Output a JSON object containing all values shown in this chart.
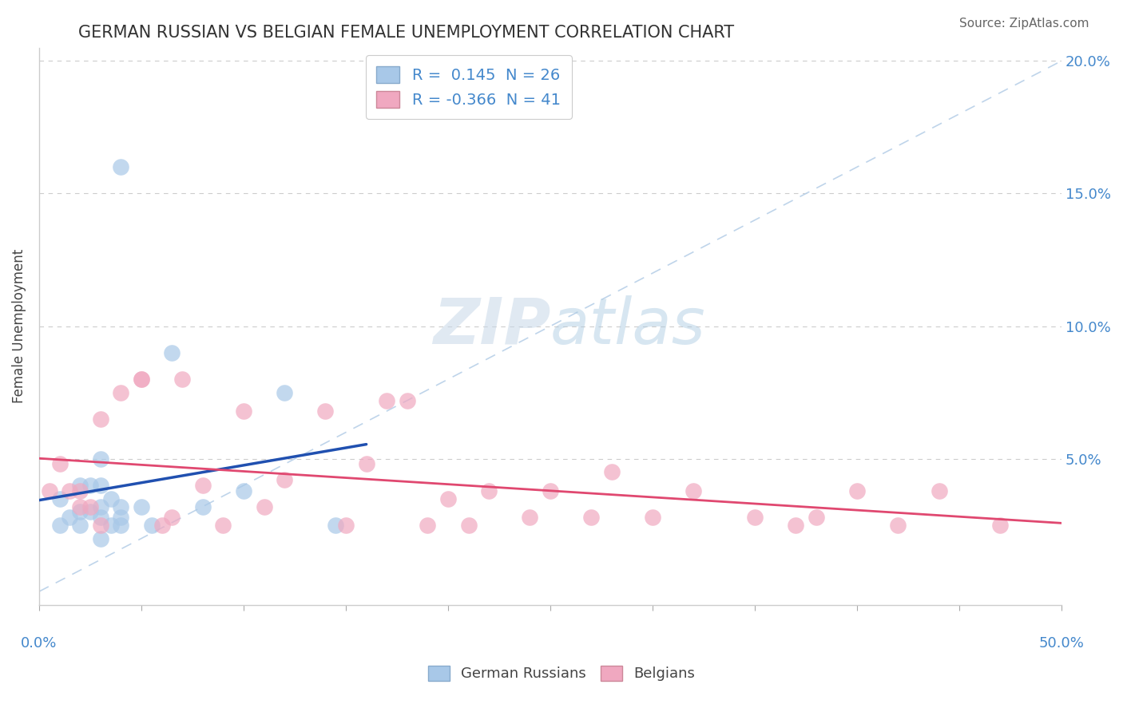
{
  "title": "GERMAN RUSSIAN VS BELGIAN FEMALE UNEMPLOYMENT CORRELATION CHART",
  "source": "Source: ZipAtlas.com",
  "ylabel": "Female Unemployment",
  "y_ticks": [
    0.0,
    0.05,
    0.1,
    0.15,
    0.2
  ],
  "y_tick_labels_right": [
    "",
    "5.0%",
    "10.0%",
    "15.0%",
    "20.0%"
  ],
  "x_ticks": [
    0.0,
    0.05,
    0.1,
    0.15,
    0.2,
    0.25,
    0.3,
    0.35,
    0.4,
    0.45,
    0.5
  ],
  "legend_r1": "R =  0.145  N = 26",
  "legend_r2": "R = -0.366  N = 41",
  "blue_color": "#a8c8e8",
  "pink_color": "#f0a8c0",
  "blue_line_color": "#2050b0",
  "pink_line_color": "#e04870",
  "diag_line_color": "#b8d0e8",
  "background_color": "#ffffff",
  "grid_color": "#cccccc",
  "title_color": "#333333",
  "source_color": "#666666",
  "right_tick_color": "#4488cc",
  "watermark_color": "#ddeeff",
  "german_russians_x": [
    0.01,
    0.01,
    0.015,
    0.02,
    0.02,
    0.02,
    0.025,
    0.025,
    0.03,
    0.03,
    0.03,
    0.03,
    0.03,
    0.035,
    0.035,
    0.04,
    0.04,
    0.04,
    0.04,
    0.05,
    0.055,
    0.065,
    0.08,
    0.1,
    0.12,
    0.145
  ],
  "german_russians_y": [
    0.025,
    0.035,
    0.028,
    0.025,
    0.03,
    0.04,
    0.03,
    0.04,
    0.02,
    0.028,
    0.032,
    0.04,
    0.05,
    0.025,
    0.035,
    0.025,
    0.028,
    0.032,
    0.16,
    0.032,
    0.025,
    0.09,
    0.032,
    0.038,
    0.075,
    0.025
  ],
  "belgians_x": [
    0.005,
    0.01,
    0.015,
    0.02,
    0.02,
    0.025,
    0.03,
    0.03,
    0.04,
    0.05,
    0.05,
    0.06,
    0.065,
    0.07,
    0.08,
    0.09,
    0.1,
    0.11,
    0.12,
    0.14,
    0.15,
    0.16,
    0.17,
    0.18,
    0.19,
    0.2,
    0.21,
    0.22,
    0.24,
    0.25,
    0.27,
    0.28,
    0.3,
    0.32,
    0.35,
    0.37,
    0.38,
    0.4,
    0.42,
    0.44,
    0.47
  ],
  "belgians_y": [
    0.038,
    0.048,
    0.038,
    0.032,
    0.038,
    0.032,
    0.025,
    0.065,
    0.075,
    0.08,
    0.08,
    0.025,
    0.028,
    0.08,
    0.04,
    0.025,
    0.068,
    0.032,
    0.042,
    0.068,
    0.025,
    0.048,
    0.072,
    0.072,
    0.025,
    0.035,
    0.025,
    0.038,
    0.028,
    0.038,
    0.028,
    0.045,
    0.028,
    0.038,
    0.028,
    0.025,
    0.028,
    0.038,
    0.025,
    0.038,
    0.025
  ],
  "xlim": [
    0.0,
    0.5
  ],
  "ylim": [
    -0.005,
    0.205
  ],
  "blue_trend_x": [
    0.0,
    0.16
  ],
  "pink_trend_x": [
    0.0,
    0.5
  ]
}
